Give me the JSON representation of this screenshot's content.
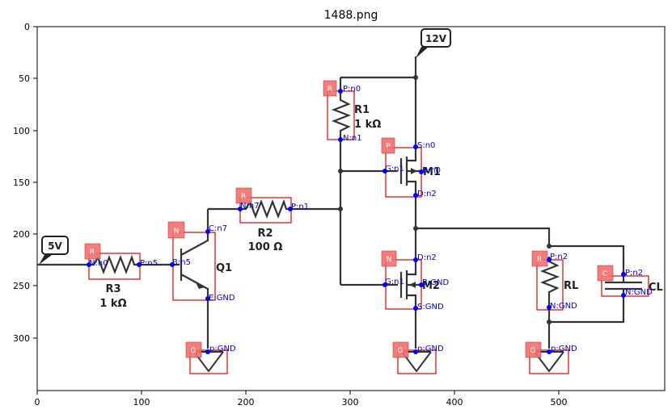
{
  "title": "1488.png",
  "axes": {
    "x_ticks": [
      "0",
      "100",
      "200",
      "300",
      "400",
      "500"
    ],
    "y_ticks": [
      "0",
      "50",
      "100",
      "150",
      "200",
      "250",
      "300"
    ]
  },
  "supplies": [
    {
      "id": "v12",
      "label": "12V"
    },
    {
      "id": "v5",
      "label": "5V"
    }
  ],
  "components": [
    {
      "id": "R1",
      "label": "R1",
      "value": "1 kΩ",
      "tag": "R"
    },
    {
      "id": "R2",
      "label": "R2",
      "value": "100 Ω",
      "tag": "R"
    },
    {
      "id": "R3",
      "label": "R3",
      "value": "1 kΩ",
      "tag": "R"
    },
    {
      "id": "Q1",
      "label": "Q1",
      "value": "",
      "tag": "N"
    },
    {
      "id": "M1",
      "label": "M1",
      "value": "",
      "tag": "P"
    },
    {
      "id": "M2",
      "label": "M2",
      "value": "",
      "tag": "N"
    },
    {
      "id": "RL",
      "label": "RL",
      "value": "",
      "tag": "R"
    },
    {
      "id": "CL",
      "label": "CL",
      "value": "",
      "tag": "C"
    },
    {
      "id": "G1",
      "label": "",
      "value": "",
      "tag": "G"
    },
    {
      "id": "G2",
      "label": "",
      "value": "",
      "tag": "G"
    },
    {
      "id": "G3",
      "label": "",
      "value": "",
      "tag": "G"
    }
  ],
  "pins": [
    {
      "comp": "R1",
      "label": "P:n0"
    },
    {
      "comp": "R1",
      "label": "N:n1"
    },
    {
      "comp": "M1",
      "label": "S:n0"
    },
    {
      "comp": "M1",
      "label": "G:n1"
    },
    {
      "comp": "M1",
      "label": "B:n0"
    },
    {
      "comp": "M1",
      "label": "D:n2"
    },
    {
      "comp": "R2",
      "label": "N:n7"
    },
    {
      "comp": "R2",
      "label": "P:n1"
    },
    {
      "comp": "Q1",
      "label": "C:n7"
    },
    {
      "comp": "Q1",
      "label": "B:n5"
    },
    {
      "comp": "Q1",
      "label": "E:GND"
    },
    {
      "comp": "R3",
      "label": "N:n0"
    },
    {
      "comp": "R3",
      "label": "P:n5"
    },
    {
      "comp": "M2",
      "label": "D:n2"
    },
    {
      "comp": "M2",
      "label": "G:n1"
    },
    {
      "comp": "M2",
      "label": "B:GND"
    },
    {
      "comp": "M2",
      "label": "S:GND"
    },
    {
      "comp": "RL",
      "label": "P:n2"
    },
    {
      "comp": "RL",
      "label": "N:GND"
    },
    {
      "comp": "CL",
      "label": "P:n2"
    },
    {
      "comp": "CL",
      "label": "N:GND"
    },
    {
      "comp": "G1",
      "label": "p:GND"
    },
    {
      "comp": "G2",
      "label": "p:GND"
    },
    {
      "comp": "G3",
      "label": "p:GND"
    }
  ]
}
